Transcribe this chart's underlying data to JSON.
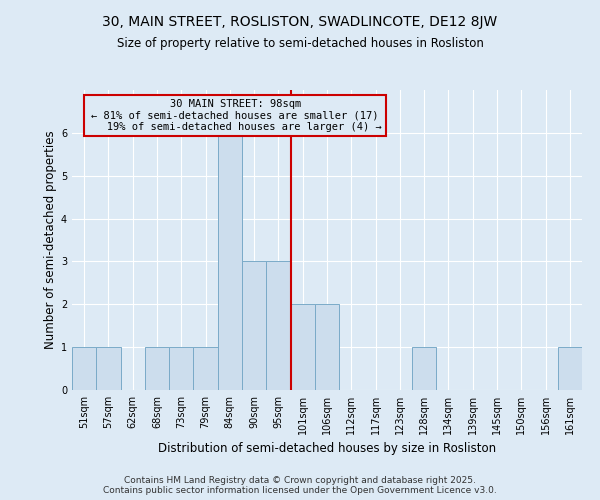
{
  "title": "30, MAIN STREET, ROSLISTON, SWADLINCOTE, DE12 8JW",
  "subtitle": "Size of property relative to semi-detached houses in Rosliston",
  "xlabel": "Distribution of semi-detached houses by size in Rosliston",
  "ylabel": "Number of semi-detached properties",
  "categories": [
    "51sqm",
    "57sqm",
    "62sqm",
    "68sqm",
    "73sqm",
    "79sqm",
    "84sqm",
    "90sqm",
    "95sqm",
    "101sqm",
    "106sqm",
    "112sqm",
    "117sqm",
    "123sqm",
    "128sqm",
    "134sqm",
    "139sqm",
    "145sqm",
    "150sqm",
    "156sqm",
    "161sqm"
  ],
  "values": [
    1,
    1,
    0,
    1,
    1,
    1,
    6,
    3,
    3,
    2,
    2,
    0,
    0,
    0,
    1,
    0,
    0,
    0,
    0,
    0,
    1
  ],
  "bar_color": "#ccdded",
  "bar_edge_color": "#7aaac8",
  "subject_line_index": 9,
  "subject_value": "98sqm",
  "pct_smaller": 81,
  "count_smaller": 17,
  "pct_larger": 19,
  "count_larger": 4,
  "annotation_box_color": "#cc0000",
  "background_color": "#ddeaf5",
  "ylim": [
    0,
    7
  ],
  "yticks": [
    0,
    1,
    2,
    3,
    4,
    5,
    6
  ],
  "footer": "Contains HM Land Registry data © Crown copyright and database right 2025.\nContains public sector information licensed under the Open Government Licence v3.0.",
  "grid_color": "#ffffff",
  "title_fontsize": 10,
  "subtitle_fontsize": 8.5,
  "axis_label_fontsize": 8.5,
  "tick_fontsize": 7,
  "annotation_fontsize": 7.5,
  "footer_fontsize": 6.5
}
